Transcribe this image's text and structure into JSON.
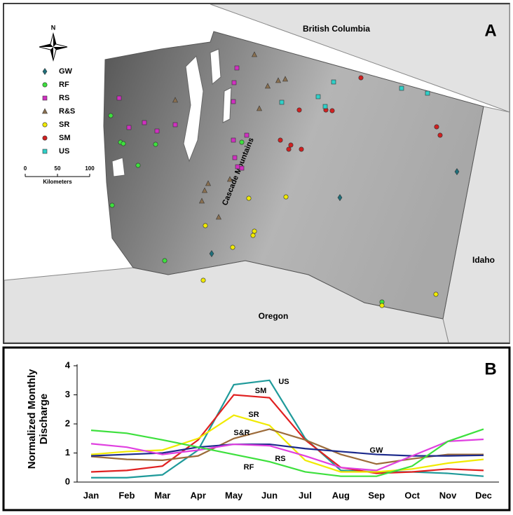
{
  "map": {
    "panel_label": "A",
    "north": "N",
    "regions": [
      "British Columbia",
      "Idaho",
      "Oregon"
    ],
    "feature": "Cascade Mountains",
    "legend": [
      "GW",
      "RF",
      "RS",
      "R&S",
      "SR",
      "SM",
      "US"
    ],
    "scale": {
      "ticks": [
        "0",
        "50",
        "100"
      ],
      "unit": "Kilometers"
    }
  },
  "chart_data": {
    "type": "line",
    "panel_label": "B",
    "y_label": "Normalized Monthly Discharge",
    "categories": [
      "Jan",
      "Feb",
      "Mar",
      "Apr",
      "May",
      "Jun",
      "Jul",
      "Aug",
      "Sep",
      "Oct",
      "Nov",
      "Dec"
    ],
    "ylim": [
      0,
      4
    ],
    "yticks": [
      0,
      1,
      2,
      3,
      4
    ],
    "series": [
      {
        "name": "US",
        "color": "#1f9a9a",
        "values": [
          0.15,
          0.15,
          0.25,
          1.1,
          3.35,
          3.5,
          1.5,
          0.4,
          0.35,
          0.35,
          0.3,
          0.2
        ]
      },
      {
        "name": "SM",
        "color": "#e02020",
        "values": [
          0.35,
          0.4,
          0.55,
          1.45,
          3.0,
          2.9,
          1.45,
          0.5,
          0.3,
          0.35,
          0.45,
          0.4
        ]
      },
      {
        "name": "SR",
        "color": "#f0ea00",
        "values": [
          0.95,
          1.05,
          1.1,
          1.5,
          2.3,
          1.95,
          0.75,
          0.35,
          0.35,
          0.45,
          0.65,
          0.78
        ]
      },
      {
        "name": "S&R",
        "color": "#9c6b3a",
        "values": [
          0.88,
          0.78,
          0.75,
          0.9,
          1.5,
          1.82,
          1.45,
          0.95,
          0.62,
          0.8,
          0.95,
          0.95
        ]
      },
      {
        "name": "GW",
        "color": "#1c2a8c",
        "values": [
          0.9,
          0.95,
          1.0,
          1.2,
          1.3,
          1.3,
          1.15,
          1.05,
          0.95,
          0.9,
          0.9,
          0.92
        ]
      },
      {
        "name": "RS",
        "color": "#e040e0",
        "values": [
          1.32,
          1.2,
          0.95,
          1.1,
          1.3,
          1.25,
          0.9,
          0.5,
          0.4,
          0.9,
          1.4,
          1.47
        ]
      },
      {
        "name": "RF",
        "color": "#3de03d",
        "values": [
          1.78,
          1.68,
          1.45,
          1.2,
          0.95,
          0.7,
          0.35,
          0.2,
          0.2,
          0.55,
          1.4,
          1.82
        ]
      }
    ]
  }
}
